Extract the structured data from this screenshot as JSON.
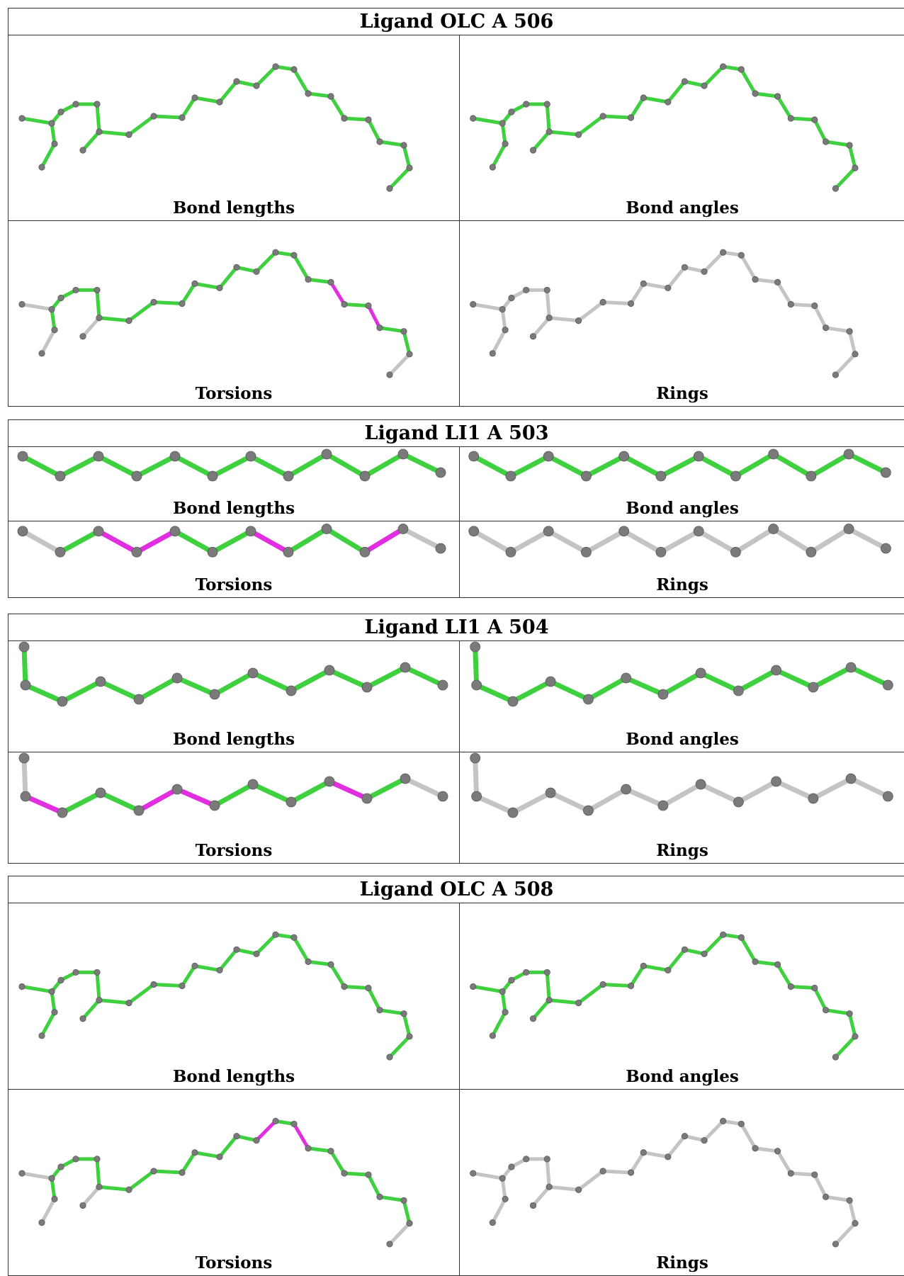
{
  "colors": {
    "ok": "#3fd03f",
    "outlier": "#e02ee0",
    "none": "#c4c4c4",
    "atom": "#7a7a7a"
  },
  "panel_labels": [
    "Bond lengths",
    "Bond angles",
    "Torsions",
    "Rings"
  ],
  "ligands": [
    {
      "title": "Ligand OLC A 506",
      "torsion_outlier_bonds": [
        [
          19,
          20
        ],
        [
          21,
          22
        ]
      ]
    },
    {
      "title": "Ligand LI1 A 503",
      "torsion_outlier_bonds": [
        [
          2,
          3
        ],
        [
          3,
          4
        ],
        [
          6,
          7
        ],
        [
          9,
          10
        ]
      ]
    },
    {
      "title": "Ligand LI1 A 504",
      "torsion_outlier_bonds": [
        [
          1,
          2
        ],
        [
          4,
          5
        ],
        [
          5,
          6
        ],
        [
          9,
          10
        ]
      ]
    },
    {
      "title": "Ligand OLC A 508",
      "torsion_outlier_bonds": [
        [
          15,
          16
        ],
        [
          17,
          18
        ]
      ]
    }
  ]
}
